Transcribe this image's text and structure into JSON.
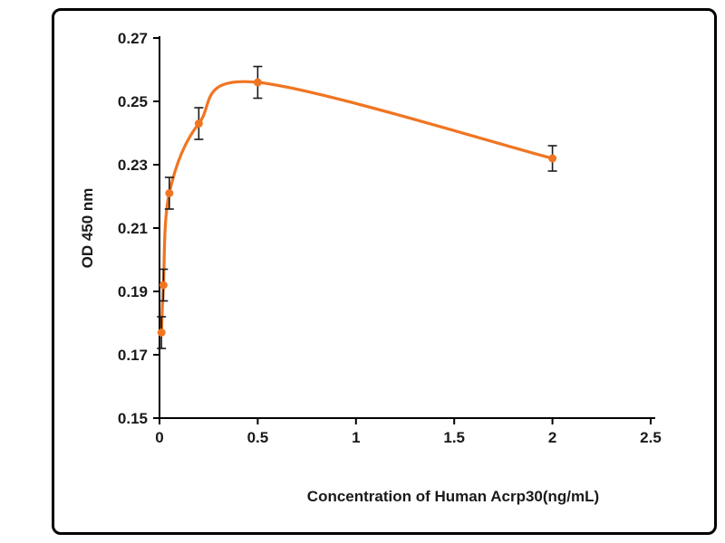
{
  "frame": {
    "border_color": "#000000",
    "background": "#ffffff"
  },
  "chart_data": {
    "type": "line",
    "title": "",
    "xlabel": "Concentration of Human Acrp30(ng/mL)",
    "ylabel": "OD 450 nm",
    "x": [
      0.01,
      0.02,
      0.05,
      0.2,
      0.5,
      2
    ],
    "y": [
      0.177,
      0.192,
      0.221,
      0.243,
      0.256,
      0.232
    ],
    "y_err": [
      0.005,
      0.005,
      0.005,
      0.005,
      0.005,
      0.004
    ],
    "xlim": [
      0,
      2.5
    ],
    "ylim": [
      0.15,
      0.27
    ],
    "x_ticks": [
      0,
      0.5,
      1,
      1.5,
      2,
      2.5
    ],
    "x_tick_labels": [
      "0",
      "0.5",
      "1",
      "1.5",
      "2",
      "2.5"
    ],
    "y_ticks": [
      0.15,
      0.17,
      0.19,
      0.21,
      0.23,
      0.25,
      0.27
    ],
    "y_tick_labels": [
      "0.15",
      "0.17",
      "0.19",
      "0.21",
      "0.23",
      "0.25",
      "0.27"
    ],
    "grid": false,
    "legend": null,
    "series_color": "#F07522",
    "error_bar_color": "#1a1a1a",
    "axis_color": "#000000",
    "marker": "circle"
  }
}
